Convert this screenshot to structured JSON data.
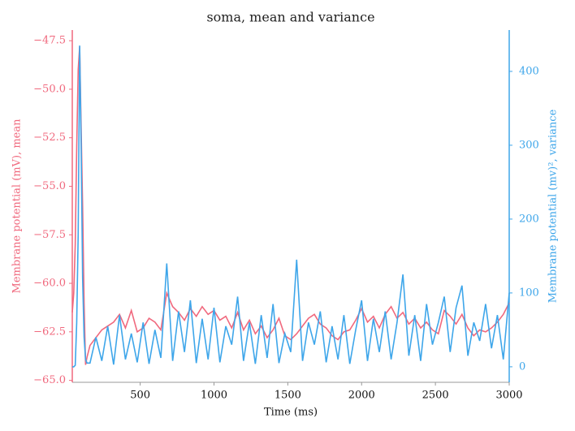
{
  "chart_data": {
    "type": "line",
    "title": "soma, mean and variance",
    "xlabel": "Time (ms)",
    "ylabel": "Membrane potential (mV), mean",
    "y2label": "Membrane potential (mv)², variance",
    "x": [
      40,
      50,
      60,
      70,
      80,
      90,
      100,
      110,
      120,
      130,
      140,
      160,
      200,
      240,
      280,
      320,
      360,
      400,
      440,
      480,
      520,
      560,
      600,
      640,
      680,
      720,
      760,
      800,
      840,
      880,
      920,
      960,
      1000,
      1040,
      1080,
      1120,
      1160,
      1200,
      1240,
      1280,
      1320,
      1360,
      1400,
      1440,
      1480,
      1520,
      1560,
      1600,
      1640,
      1680,
      1720,
      1760,
      1800,
      1840,
      1880,
      1920,
      1960,
      2000,
      2040,
      2080,
      2120,
      2160,
      2200,
      2240,
      2280,
      2320,
      2360,
      2400,
      2440,
      2480,
      2520,
      2560,
      2600,
      2640,
      2680,
      2720,
      2760,
      2800,
      2840,
      2880,
      2920,
      2960,
      3000
    ],
    "series": [
      {
        "name": "mean",
        "color": "#f0697e",
        "axis": "y",
        "values": [
          -61.5,
          -60.5,
          -58,
          -53,
          -49,
          -47.8,
          -52,
          -56,
          -61,
          -64.2,
          -63.8,
          -63.2,
          -62.8,
          -62.4,
          -62.2,
          -62.0,
          -61.6,
          -62.3,
          -61.4,
          -62.5,
          -62.3,
          -61.8,
          -62.0,
          -62.4,
          -60.5,
          -61.2,
          -61.5,
          -61.9,
          -61.3,
          -61.7,
          -61.2,
          -61.6,
          -61.4,
          -61.9,
          -61.7,
          -62.3,
          -61.5,
          -62.4,
          -61.9,
          -62.6,
          -62.2,
          -62.8,
          -62.4,
          -61.8,
          -62.7,
          -62.9,
          -62.6,
          -62.2,
          -61.8,
          -61.6,
          -62.1,
          -62.3,
          -62.7,
          -62.9,
          -62.5,
          -62.4,
          -61.9,
          -61.3,
          -62.0,
          -61.7,
          -62.3,
          -61.6,
          -61.2,
          -61.8,
          -61.5,
          -62.1,
          -61.8,
          -62.3,
          -62.0,
          -62.4,
          -62.6,
          -61.4,
          -61.7,
          -62.1,
          -61.6,
          -62.3,
          -62.7,
          -62.4,
          -62.5,
          -62.3,
          -62.0,
          -61.6,
          -61.0
        ]
      },
      {
        "name": "variance",
        "color": "#3ea6ea",
        "axis": "y2",
        "values": [
          0,
          0,
          2,
          60,
          180,
          435,
          300,
          120,
          40,
          10,
          5,
          5,
          40,
          8,
          55,
          3,
          70,
          10,
          45,
          6,
          60,
          4,
          50,
          12,
          140,
          8,
          75,
          20,
          90,
          5,
          65,
          10,
          80,
          6,
          55,
          30,
          95,
          8,
          60,
          4,
          70,
          12,
          85,
          5,
          45,
          20,
          145,
          8,
          60,
          30,
          75,
          6,
          55,
          10,
          70,
          4,
          50,
          90,
          8,
          65,
          20,
          75,
          10,
          60,
          125,
          15,
          70,
          8,
          85,
          30,
          60,
          95,
          20,
          80,
          110,
          15,
          60,
          35,
          85,
          25,
          70,
          10,
          100
        ]
      }
    ],
    "xlim": [
      40,
      3000
    ],
    "xticks": [
      500,
      1000,
      1500,
      2000,
      2500,
      3000
    ],
    "ylim": [
      -65.1,
      -46.95
    ],
    "yticks": [
      {
        "value": -65,
        "label": "−65.0"
      },
      {
        "value": -62.5,
        "label": "−62.5"
      },
      {
        "value": -60,
        "label": "−60.0"
      },
      {
        "value": -57.5,
        "label": "−57.5"
      },
      {
        "value": -55,
        "label": "−55.0"
      },
      {
        "value": -52.5,
        "label": "−52.5"
      },
      {
        "value": -50,
        "label": "−50.0"
      },
      {
        "value": -47.5,
        "label": "−47.5"
      }
    ],
    "y2lim": [
      -21,
      456
    ],
    "y2ticks": [
      0,
      100,
      200,
      300,
      400
    ]
  }
}
